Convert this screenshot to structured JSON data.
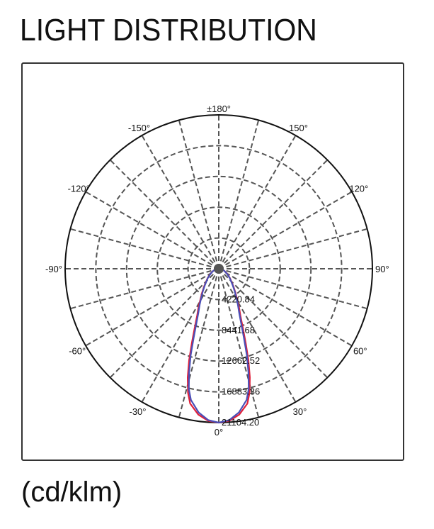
{
  "title": "LIGHT DISTRIBUTION",
  "unit": "(cd/klm)",
  "colors": {
    "series_red": "#e0203a",
    "series_blue": "#4a4fb8",
    "grid": "#555555",
    "outline": "#111111"
  },
  "chart_data": {
    "type": "polar",
    "angle_labels": [
      "±180°",
      "150°",
      "120°",
      "90°",
      "60°",
      "30°",
      "0°",
      "-30°",
      "-60°",
      "-90°",
      "-120°",
      "-150°"
    ],
    "radial_ticks": [
      "4220.84",
      "8441.68",
      "12662.52",
      "16883.36",
      "21104.20"
    ],
    "rlim": [
      0,
      21104.2
    ],
    "grid": true,
    "series": [
      {
        "color": "#e0203a",
        "angles": [
          0,
          4,
          8,
          12,
          14,
          16,
          18,
          20,
          22,
          25,
          28,
          31,
          35,
          40,
          50,
          60,
          70,
          80,
          90
        ],
        "values": [
          21104,
          20900,
          20200,
          18900,
          17500,
          15500,
          13200,
          10800,
          8900,
          7000,
          5900,
          4900,
          4000,
          3100,
          2000,
          1300,
          800,
          450,
          200
        ]
      },
      {
        "color": "#4a4fb8",
        "angles": [
          0,
          4,
          8,
          12,
          14,
          16,
          18,
          20,
          22,
          25,
          28,
          31,
          35,
          40,
          50,
          60,
          70,
          80,
          90
        ],
        "values": [
          21104,
          20800,
          19900,
          18400,
          17000,
          14800,
          12500,
          10100,
          8300,
          6600,
          5600,
          4700,
          3850,
          3000,
          1950,
          1250,
          780,
          440,
          200
        ]
      }
    ]
  }
}
